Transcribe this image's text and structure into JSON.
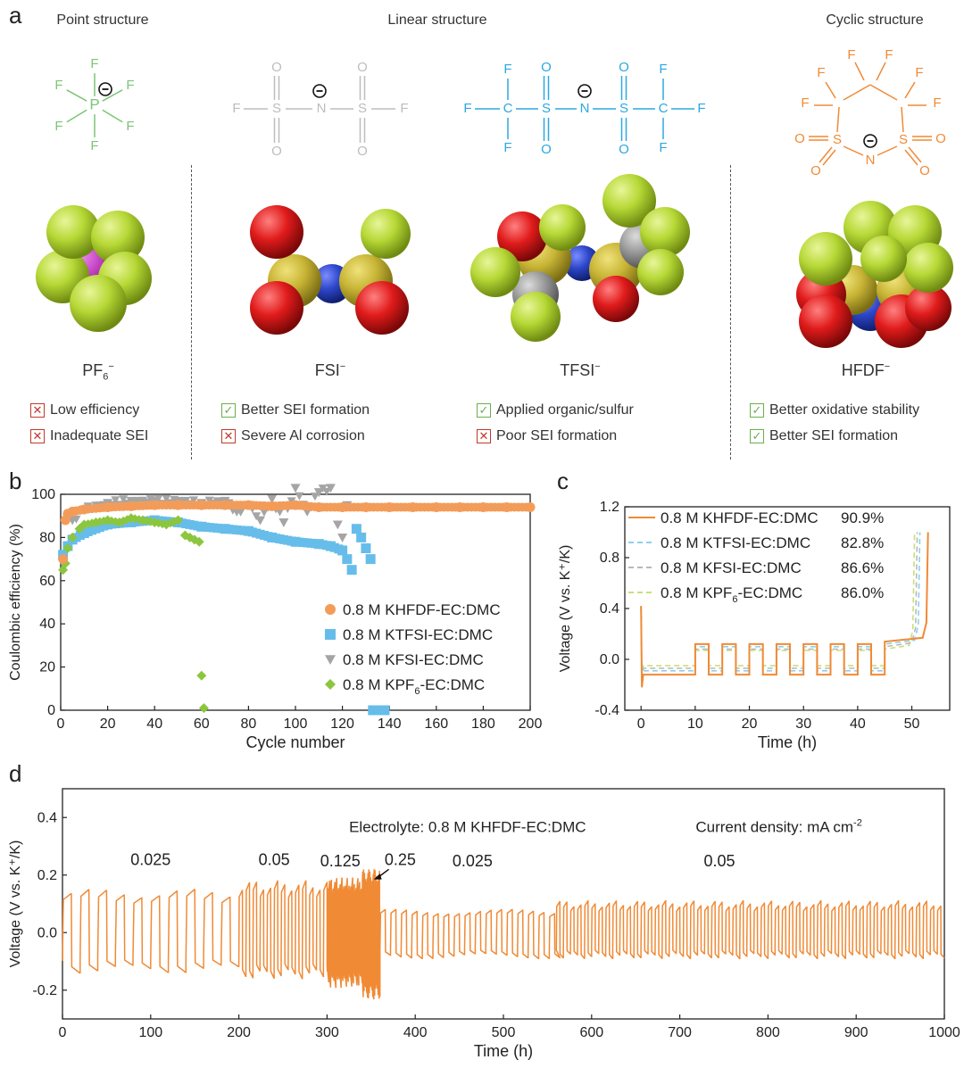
{
  "panel_a": {
    "letter": "a",
    "headers": {
      "point": "Point structure",
      "linear": "Linear structure",
      "cyclic": "Cyclic structure"
    },
    "formula_atoms": {
      "P": "P",
      "F": "F",
      "O": "O",
      "S": "S",
      "N": "N",
      "C": "C",
      "minus": "⊖"
    },
    "ions": [
      {
        "name": "PF",
        "sub": "6",
        "sup": "−",
        "features": [
          {
            "mark": "bad",
            "text": "Low efficiency"
          },
          {
            "mark": "bad",
            "text": "Inadequate SEI"
          }
        ]
      },
      {
        "name": "FSI",
        "sub": "",
        "sup": "−",
        "features": [
          {
            "mark": "good",
            "text": "Better SEI formation"
          },
          {
            "mark": "bad",
            "text": "Severe Al corrosion"
          }
        ]
      },
      {
        "name": "TFSI",
        "sub": "",
        "sup": "−",
        "features": [
          {
            "mark": "good",
            "text": "Applied organic/sulfur"
          },
          {
            "mark": "bad",
            "text": "Poor SEI formation"
          }
        ]
      },
      {
        "name": "HFDF",
        "sub": "",
        "sup": "−",
        "features": [
          {
            "mark": "good",
            "text": "Better oxidative stability"
          },
          {
            "mark": "good",
            "text": "Better SEI formation"
          }
        ]
      }
    ],
    "colors": {
      "pf6": "#7cc576",
      "fsi": "#bdbdbd",
      "tfsi": "#2ba8e0",
      "hfdf": "#f08a35",
      "sphere_f": "#b6d835",
      "sphere_o": "#e01b1b",
      "sphere_s": "#c8b536",
      "sphere_n": "#2c46c8",
      "sphere_p": "#c040c0",
      "sphere_c": "#9a9a9a"
    }
  },
  "chart_data": [
    {
      "panel": "b",
      "type": "scatter",
      "xlabel": "Cycle number",
      "ylabel": "Coulombic efficiency (%)",
      "xlim": [
        0,
        200
      ],
      "ylim": [
        0,
        100
      ],
      "xticks": [
        0,
        20,
        40,
        60,
        80,
        100,
        120,
        140,
        160,
        180,
        200
      ],
      "yticks": [
        0,
        20,
        40,
        60,
        80,
        100
      ],
      "legend_position": "bottom-right",
      "series": [
        {
          "name": "0.8 M KHFDF-EC:DMC",
          "marker": "circle",
          "color": "#f39c5a",
          "x": [
            1,
            2,
            3,
            5,
            10,
            20,
            30,
            40,
            50,
            60,
            70,
            80,
            90,
            100,
            110,
            120,
            130,
            140,
            150,
            160,
            170,
            180,
            190,
            200
          ],
          "y": [
            70,
            88,
            91,
            92,
            93,
            94,
            94.5,
            95,
            95,
            95,
            95,
            95,
            94.5,
            95,
            94,
            94,
            94,
            94,
            94,
            94,
            94,
            94,
            94,
            94
          ]
        },
        {
          "name": "0.8 M KTFSI-EC:DMC",
          "marker": "square",
          "color": "#66bdea",
          "x": [
            1,
            3,
            5,
            10,
            20,
            30,
            40,
            50,
            60,
            70,
            80,
            90,
            100,
            110,
            115,
            120,
            122,
            124,
            126,
            128,
            130,
            132,
            133,
            134,
            136,
            138
          ],
          "y": [
            72,
            76,
            79,
            82,
            86,
            87,
            88,
            87,
            85,
            84,
            83,
            80,
            78,
            77,
            76,
            74,
            70,
            65,
            84,
            80,
            75,
            70,
            0,
            0,
            0,
            0
          ]
        },
        {
          "name": "0.8 M KFSI-EC:DMC",
          "marker": "triangle-down",
          "color": "#a5a5a5",
          "x": [
            1,
            5,
            10,
            20,
            30,
            40,
            50,
            60,
            70,
            75,
            80,
            85,
            90,
            95,
            100,
            105,
            110,
            115,
            118,
            120,
            122
          ],
          "y": [
            68,
            88,
            93,
            96,
            97,
            97,
            97,
            96,
            97,
            92,
            95,
            88,
            98,
            87,
            103,
            92,
            101,
            103,
            86,
            80,
            95
          ]
        },
        {
          "name": "0.8 M KPF6-EC:DMC",
          "legend_parts": [
            "0.8 M KPF",
            "6",
            "-EC:DMC"
          ],
          "marker": "diamond",
          "color": "#8cc63f",
          "x": [
            1,
            2,
            3,
            5,
            8,
            10,
            15,
            20,
            25,
            30,
            35,
            40,
            45,
            50,
            53,
            55,
            57,
            59,
            60,
            61
          ],
          "y": [
            65,
            68,
            75,
            80,
            84,
            86,
            87,
            88,
            87,
            89,
            88,
            87,
            86,
            88,
            81,
            80,
            79,
            78,
            16,
            1
          ]
        }
      ]
    },
    {
      "panel": "c",
      "type": "line",
      "xlabel": "Time (h)",
      "ylabel": "Voltage (V vs. K⁺/K)",
      "xlim": [
        -3,
        57
      ],
      "ylim": [
        -0.4,
        1.2
      ],
      "xticks": [
        0,
        10,
        20,
        30,
        40,
        50
      ],
      "yticks": [
        -0.4,
        0.0,
        0.4,
        0.8,
        1.2
      ],
      "legend_position": "top-left",
      "series": [
        {
          "name": "0.8 M KHFDF-EC:DMC",
          "value": "90.9%",
          "style": "solid",
          "color": "#f08a35",
          "low": -0.12,
          "high": 0.12,
          "end_x": 53,
          "cap_high": 0.14
        },
        {
          "name": "0.8 M KTFSI-EC:DMC",
          "value": "82.8%",
          "style": "dashed",
          "color": "#8fd0ea",
          "low": -0.09,
          "high": 0.1,
          "end_x": 51.5,
          "cap_high": 0.12
        },
        {
          "name": "0.8 M KFSI-EC:DMC",
          "value": "86.6%",
          "style": "dashed",
          "color": "#b9b9b9",
          "low": -0.07,
          "high": 0.08,
          "end_x": 51,
          "cap_high": 0.1
        },
        {
          "name": "0.8 M KPF6-EC:DMC",
          "legend_parts": [
            "0.8 M KPF",
            "6",
            "-EC:DMC"
          ],
          "value": "86.0%",
          "style": "dashed",
          "color": "#c7e07a",
          "low": -0.05,
          "high": 0.07,
          "end_x": 50.5,
          "cap_high": 0.08
        }
      ]
    },
    {
      "panel": "d",
      "type": "line",
      "xlabel": "Time (h)",
      "ylabel": "Voltage (V vs. K⁺/K)",
      "xlim": [
        0,
        1000
      ],
      "ylim": [
        -0.3,
        0.5
      ],
      "xticks": [
        0,
        100,
        200,
        300,
        400,
        500,
        600,
        700,
        800,
        900,
        1000
      ],
      "yticks": [
        -0.2,
        0.0,
        0.2,
        0.4
      ],
      "annotation_electrolyte": "Electrolyte: 0.8 M KHFDF-EC:DMC",
      "annotation_units_parts": [
        "Current density: mA cm",
        "-2"
      ],
      "color": "#f08a35",
      "segments": [
        {
          "label": "0.025",
          "start": 0,
          "end": 200,
          "period": 20,
          "high": 0.15,
          "low": -0.14
        },
        {
          "label": "0.05",
          "start": 200,
          "end": 300,
          "period": 8,
          "high": 0.18,
          "low": -0.16
        },
        {
          "label": "0.125",
          "start": 300,
          "end": 340,
          "period": 2,
          "high": 0.19,
          "low": -0.19
        },
        {
          "label": "0.25",
          "start": 340,
          "end": 360,
          "period": 1,
          "high": 0.22,
          "low": -0.23
        },
        {
          "label": "0.025",
          "start": 360,
          "end": 560,
          "period": 12,
          "high": 0.08,
          "low": -0.09
        },
        {
          "label": "0.05",
          "start": 560,
          "end": 1000,
          "period": 8,
          "high": 0.11,
          "low": -0.09
        }
      ]
    }
  ]
}
